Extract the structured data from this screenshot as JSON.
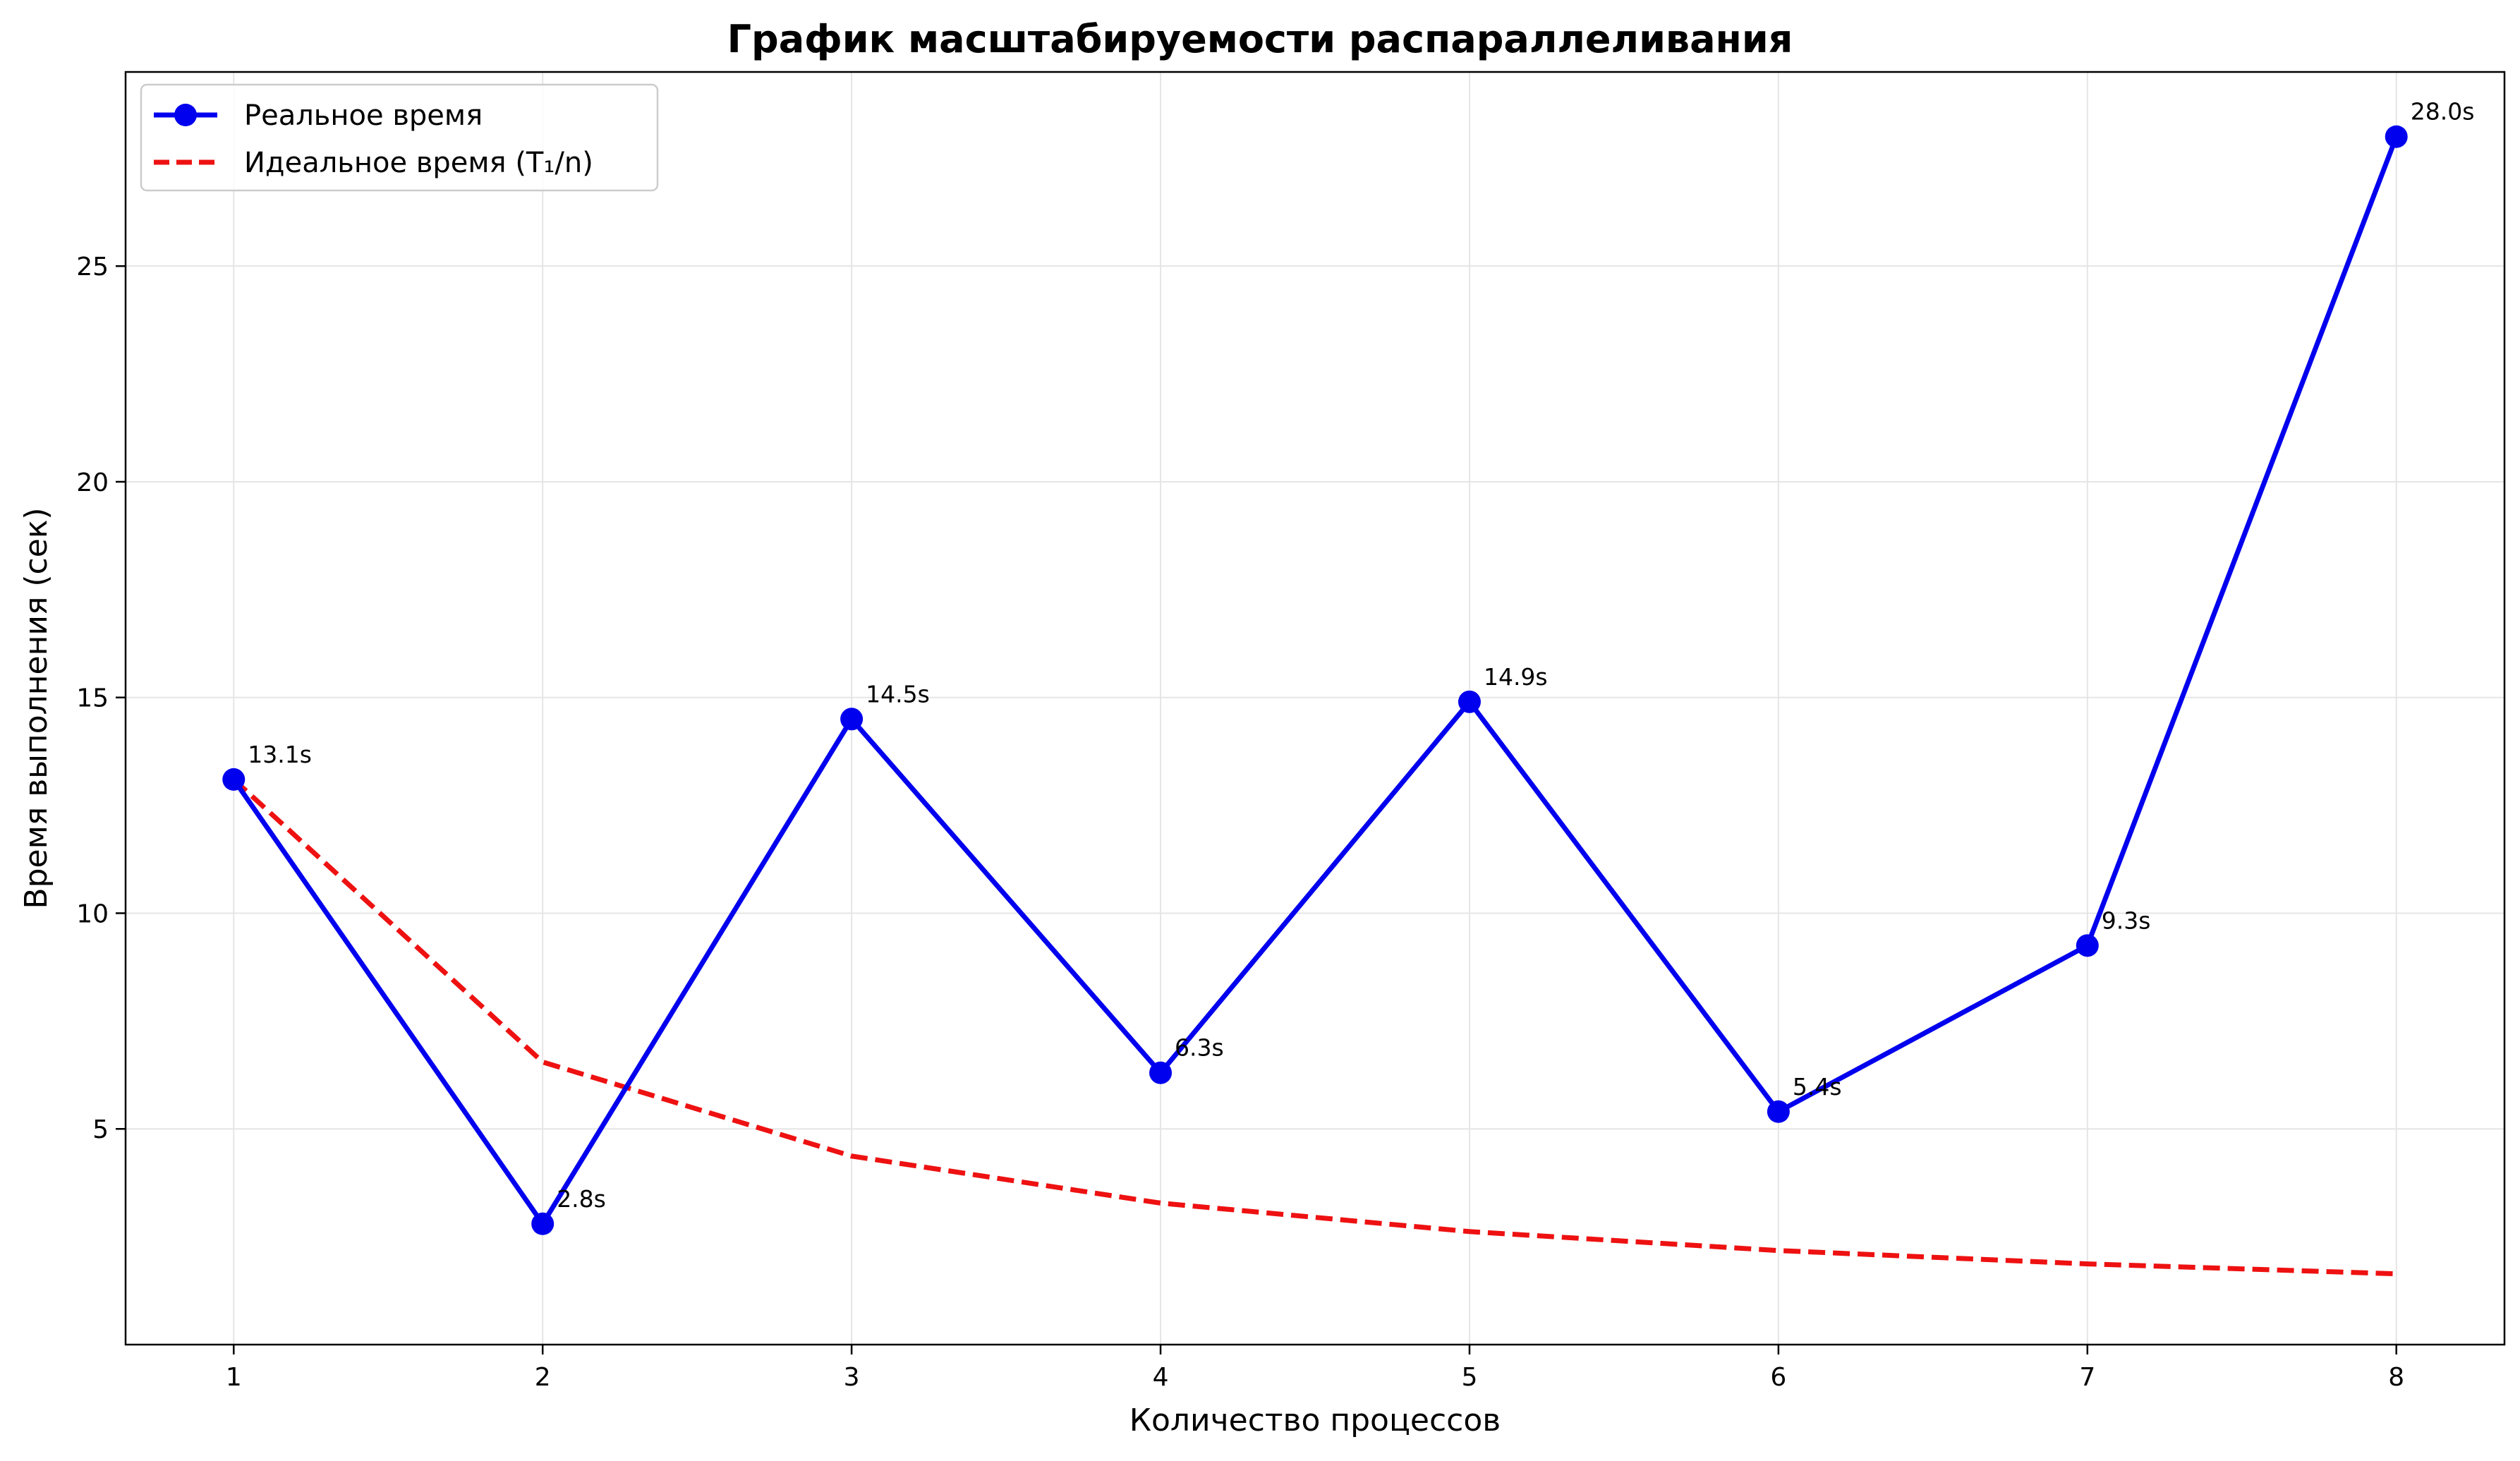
{
  "chart_data": {
    "type": "line",
    "title": "График масштабируемости распараллеливания",
    "xlabel": "Количество процессов",
    "ylabel": "Время выполнения (сек)",
    "x": [
      1,
      2,
      3,
      4,
      5,
      6,
      7,
      8
    ],
    "xlim": [
      0.65,
      8.35
    ],
    "ylim": [
      0.0,
      29.5
    ],
    "x_ticks": [
      1,
      2,
      3,
      4,
      5,
      6,
      7,
      8
    ],
    "y_ticks": [
      5,
      10,
      15,
      20,
      25
    ],
    "grid": true,
    "legend_position": "top-left",
    "series": [
      {
        "name": "Реальное время",
        "values": [
          13.1,
          2.8,
          14.5,
          6.3,
          14.9,
          5.4,
          9.25,
          28.0
        ],
        "labels": [
          "13.1s",
          "2.8s",
          "14.5s",
          "6.3s",
          "14.9s",
          "5.4s",
          "9.3s",
          "28.0s"
        ],
        "color": "#0000ee",
        "style": "solid",
        "marker": "circle"
      },
      {
        "name": "Идеальное время (T₁/n)",
        "values": [
          13.1,
          6.55,
          4.37,
          3.28,
          2.62,
          2.18,
          1.87,
          1.64
        ],
        "color": "#ee1111",
        "style": "dashed",
        "marker": "none"
      }
    ]
  }
}
